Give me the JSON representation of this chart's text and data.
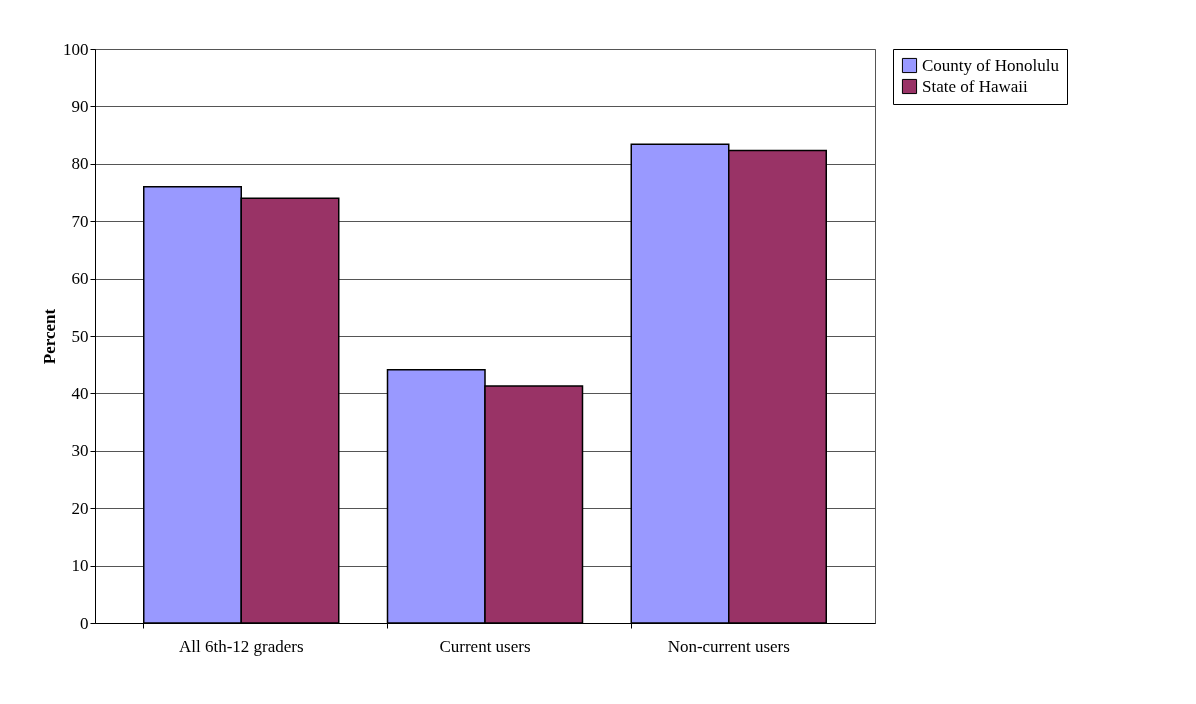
{
  "chart_data": {
    "type": "bar",
    "ylabel": "Percent",
    "categories": [
      "All 6th-12 graders",
      "Current users",
      "Non-current users"
    ],
    "series": [
      {
        "name": "County of Honolulu",
        "color": "#9999ff",
        "values": [
          76,
          44.1,
          83.4
        ]
      },
      {
        "name": "State of Hawaii",
        "color": "#993366",
        "values": [
          74,
          41.3,
          82.3
        ]
      }
    ],
    "ylim": [
      0,
      100
    ],
    "yticks": [
      0,
      10,
      20,
      30,
      40,
      50,
      60,
      70,
      80,
      90,
      100
    ],
    "grid": "y",
    "legend": "right"
  }
}
